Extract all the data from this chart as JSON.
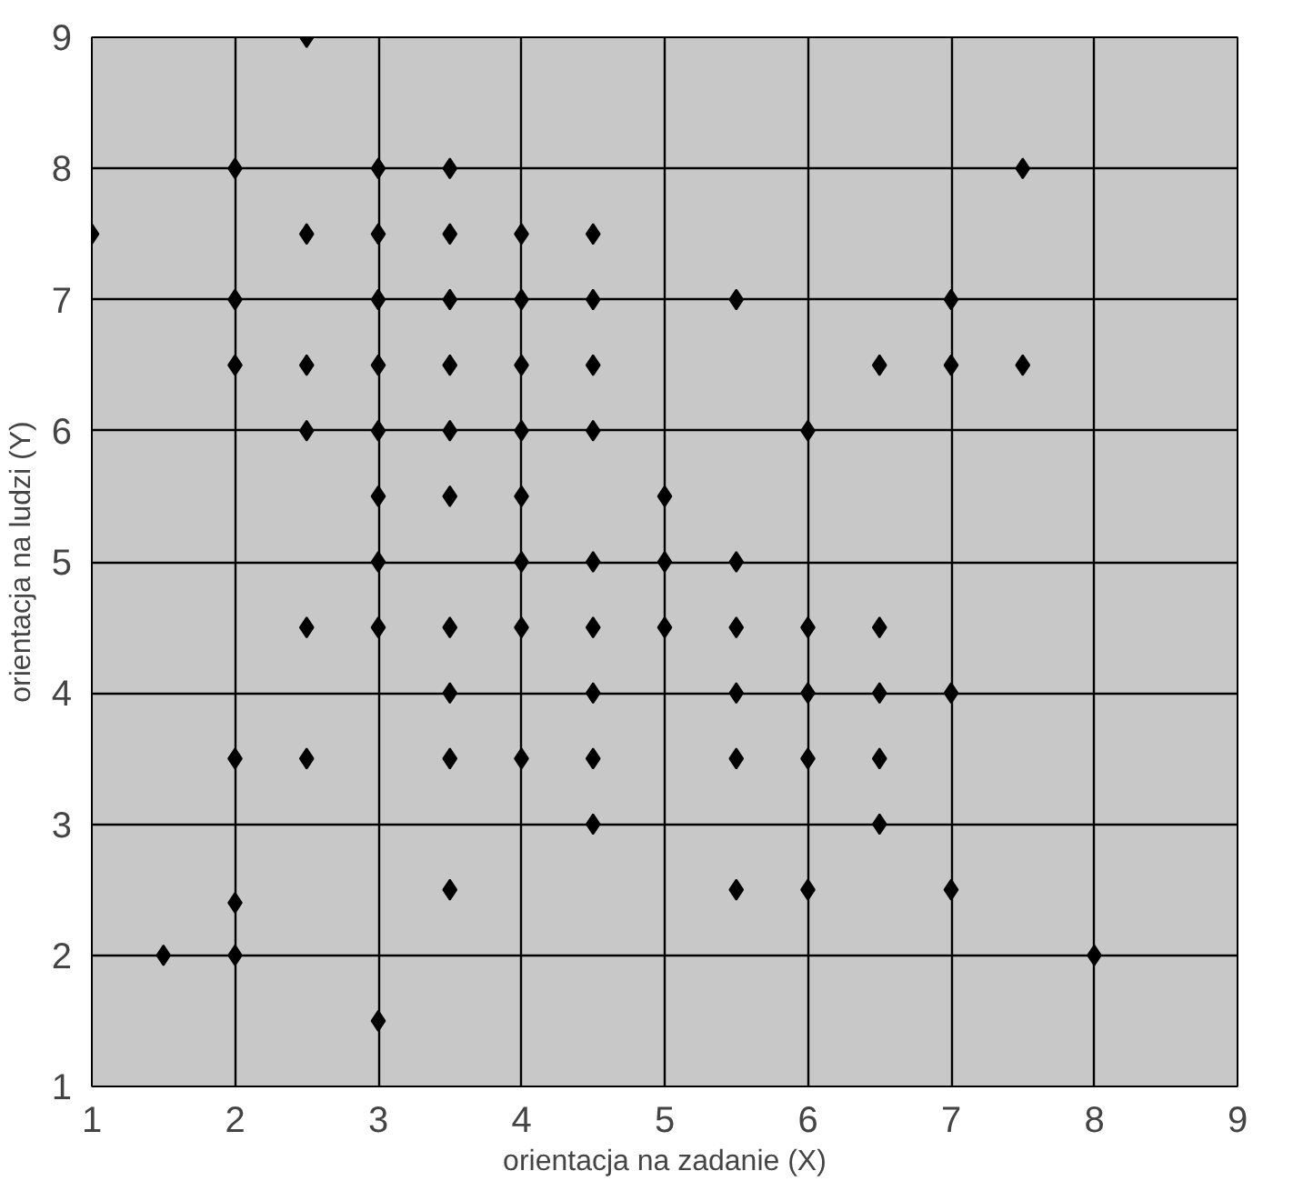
{
  "chart_data": {
    "type": "scatter",
    "xlabel": "orientacja na zadanie (X)",
    "ylabel": "orientacja na ludzi (Y)",
    "x": [
      2.5,
      2,
      3,
      3.5,
      7.5,
      1,
      2.5,
      3,
      3.5,
      4,
      4.5,
      2,
      3,
      3.5,
      4,
      4.5,
      5.5,
      7,
      2,
      2.5,
      3,
      3.5,
      4,
      4.5,
      6.5,
      7,
      7.5,
      2.5,
      3,
      3.5,
      4,
      4.5,
      6,
      3,
      3.5,
      4,
      5,
      3,
      4,
      4.5,
      5,
      5.5,
      2.5,
      3,
      3.5,
      4,
      4.5,
      5,
      5.5,
      6,
      6.5,
      3.5,
      4.5,
      5.5,
      6,
      6.5,
      7,
      2,
      2.5,
      3.5,
      4,
      4.5,
      5.5,
      6,
      6.5,
      4.5,
      6.5,
      3.5,
      5.5,
      6,
      7,
      2,
      1.5,
      2,
      8,
      3
    ],
    "values": [
      9,
      8,
      8,
      8,
      8,
      7.5,
      7.5,
      7.5,
      7.5,
      7.5,
      7.5,
      7,
      7,
      7,
      7,
      7,
      7,
      7,
      6.5,
      6.5,
      6.5,
      6.5,
      6.5,
      6.5,
      6.5,
      6.5,
      6.5,
      6,
      6,
      6,
      6,
      6,
      6,
      5.5,
      5.5,
      5.5,
      5.5,
      5,
      5,
      5,
      5,
      5,
      4.5,
      4.5,
      4.5,
      4.5,
      4.5,
      4.5,
      4.5,
      4.5,
      4.5,
      4,
      4,
      4,
      4,
      4,
      4,
      3.5,
      3.5,
      3.5,
      3.5,
      3.5,
      3.5,
      3.5,
      3.5,
      3,
      3,
      2.5,
      2.5,
      2.5,
      2.5,
      2.4,
      2,
      2,
      2,
      1.5
    ],
    "color": "#000000",
    "marker": "diamond",
    "grid": true,
    "xlim": [
      1,
      9
    ],
    "ylim": [
      1,
      9
    ],
    "xticks": [
      1,
      2,
      3,
      4,
      5,
      6,
      7,
      8,
      9
    ],
    "yticks": [
      1,
      2,
      3,
      4,
      5,
      6,
      7,
      8,
      9
    ]
  }
}
